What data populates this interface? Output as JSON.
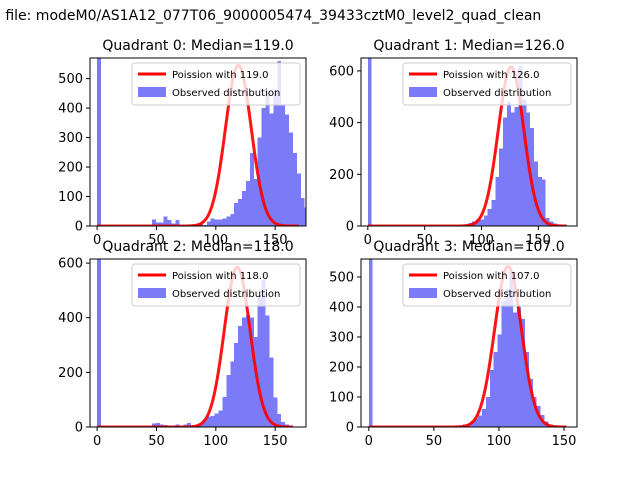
{
  "figure": {
    "suptitle": "n file: modeM0/AS1A12_077T06_9000005474_39433cztM0_level2_quad_clean"
  },
  "style": {
    "hist_color": "#7b7bf7",
    "curve_color": "#ff0000",
    "frame_color": "#000000",
    "background": "#ffffff"
  },
  "chart_data": [
    {
      "type": "bar",
      "title": "Quadrant 0: Median=119.0",
      "median": 119.0,
      "xlim": [
        -6,
        176
      ],
      "ylim": [
        0,
        570
      ],
      "xticks": [
        0,
        50,
        100,
        150
      ],
      "yticks": [
        0,
        100,
        200,
        300,
        400,
        500
      ],
      "legend": {
        "position": "upper right",
        "entries": [
          "Poission with 119.0",
          "Observed distribution"
        ]
      },
      "bin_width": 3.3,
      "bin_start": 0,
      "hist_values": [
        570,
        0,
        0,
        0,
        0,
        0,
        0,
        0,
        0,
        0,
        0,
        0,
        0,
        0,
        22,
        12,
        12,
        32,
        20,
        8,
        20,
        3,
        3,
        3,
        5,
        3,
        8,
        4,
        15,
        25,
        22,
        22,
        25,
        33,
        40,
        78,
        92,
        118,
        152,
        248,
        160,
        300,
        400,
        458,
        382,
        462,
        560,
        412,
        378,
        318,
        248,
        178,
        95,
        62,
        42,
        15,
        10,
        5
      ],
      "series": [
        {
          "name": "Poission with 119.0",
          "kind": "line",
          "mean": 119.0,
          "peak": 545,
          "x_range": [
            0,
            170
          ]
        },
        {
          "name": "Observed distribution",
          "kind": "histogram"
        }
      ]
    },
    {
      "type": "bar",
      "title": "Quadrant 1: Median=126.0",
      "median": 126.0,
      "xlim": [
        -6,
        184
      ],
      "ylim": [
        0,
        650
      ],
      "xticks": [
        0,
        50,
        100,
        150
      ],
      "yticks": [
        0,
        200,
        400,
        600
      ],
      "legend": {
        "position": "upper right",
        "entries": [
          "Poission with 126.0",
          "Observed distribution"
        ]
      },
      "bin_width": 3.4,
      "bin_start": 0,
      "hist_values": [
        650,
        0,
        0,
        0,
        0,
        0,
        0,
        0,
        0,
        0,
        0,
        0,
        0,
        0,
        0,
        0,
        0,
        0,
        0,
        0,
        0,
        0,
        0,
        0,
        3,
        6,
        12,
        18,
        25,
        25,
        40,
        65,
        100,
        190,
        300,
        420,
        480,
        440,
        460,
        620,
        490,
        440,
        380,
        250,
        190,
        180,
        30,
        18,
        10,
        5,
        3
      ],
      "series": [
        {
          "name": "Poission with 126.0",
          "kind": "line",
          "mean": 126.0,
          "peak": 615,
          "x_range": [
            0,
            175
          ]
        },
        {
          "name": "Observed distribution",
          "kind": "histogram"
        }
      ]
    },
    {
      "type": "bar",
      "title": "Quadrant 2: Median=118.0",
      "median": 118.0,
      "xlim": [
        -6,
        176
      ],
      "ylim": [
        0,
        615
      ],
      "xticks": [
        0,
        50,
        100,
        150
      ],
      "yticks": [
        0,
        200,
        400,
        600
      ],
      "legend": {
        "position": "upper right",
        "entries": [
          "Poission with 118.0",
          "Observed distribution"
        ]
      },
      "bin_width": 3.3,
      "bin_start": 0,
      "hist_values": [
        615,
        0,
        0,
        0,
        0,
        0,
        0,
        0,
        0,
        0,
        0,
        0,
        0,
        0,
        12,
        15,
        10,
        8,
        5,
        5,
        10,
        5,
        10,
        15,
        5,
        8,
        12,
        28,
        38,
        40,
        50,
        60,
        110,
        190,
        240,
        308,
        370,
        400,
        410,
        400,
        330,
        480,
        540,
        408,
        255,
        108,
        48,
        18,
        10,
        5
      ],
      "series": [
        {
          "name": "Poission with 118.0",
          "kind": "line",
          "mean": 118.0,
          "peak": 585,
          "x_range": [
            0,
            165
          ]
        },
        {
          "name": "Observed distribution",
          "kind": "histogram"
        }
      ]
    },
    {
      "type": "bar",
      "title": "Quadrant 3: Median=107.0",
      "median": 107.0,
      "xlim": [
        -6,
        160
      ],
      "ylim": [
        0,
        560
      ],
      "xticks": [
        0,
        50,
        100,
        150
      ],
      "yticks": [
        0,
        100,
        200,
        300,
        400,
        500
      ],
      "legend": {
        "position": "upper right",
        "entries": [
          "Poission with 107.0",
          "Observed distribution"
        ]
      },
      "bin_width": 3.0,
      "bin_start": 0,
      "hist_values": [
        560,
        0,
        0,
        0,
        0,
        0,
        0,
        0,
        0,
        0,
        0,
        0,
        0,
        0,
        0,
        0,
        0,
        0,
        0,
        0,
        0,
        0,
        3,
        5,
        8,
        10,
        20,
        28,
        38,
        60,
        100,
        190,
        250,
        308,
        420,
        460,
        522,
        382,
        400,
        360,
        250,
        160,
        100,
        70,
        40,
        18,
        8,
        3
      ],
      "series": [
        {
          "name": "Poission with 107.0",
          "kind": "line",
          "mean": 107.0,
          "peak": 535,
          "x_range": [
            0,
            152
          ]
        },
        {
          "name": "Observed distribution",
          "kind": "histogram"
        }
      ]
    }
  ]
}
